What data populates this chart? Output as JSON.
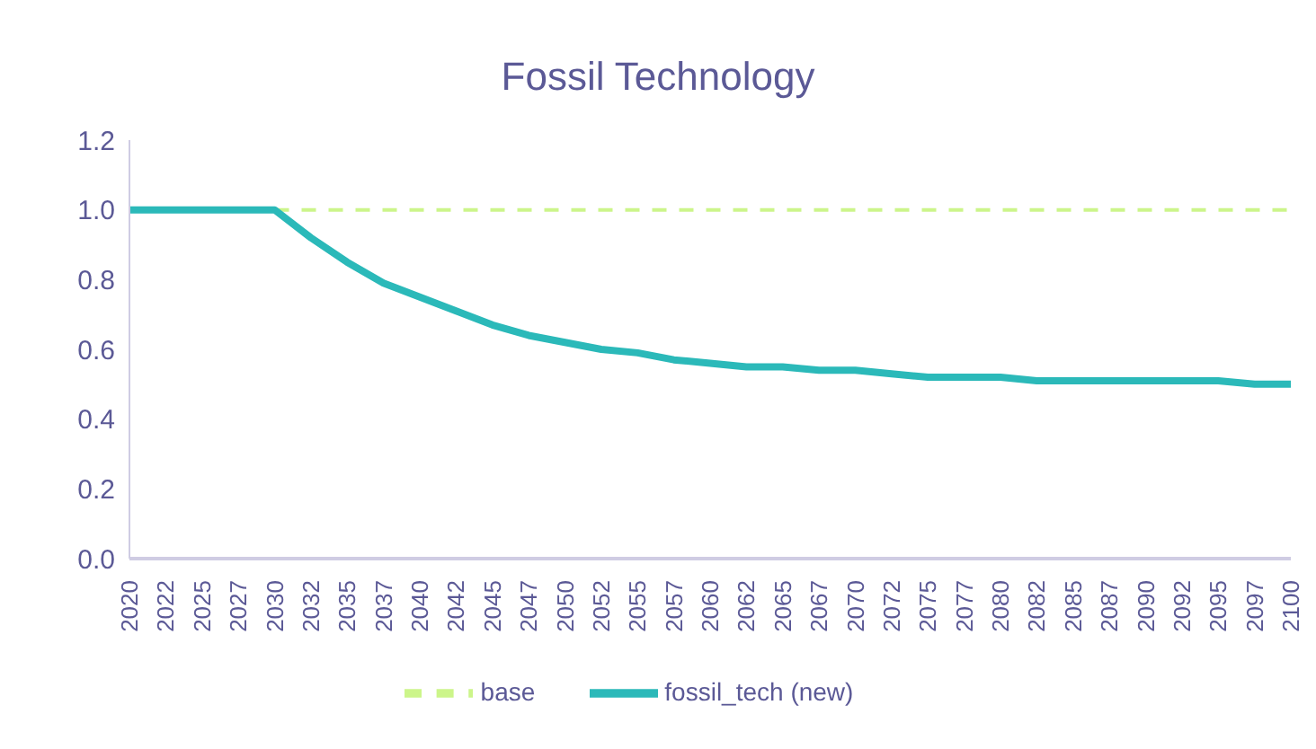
{
  "chart_data": {
    "type": "line",
    "title": "Fossil Technology",
    "categories": [
      "2020",
      "2022",
      "2025",
      "2027",
      "2030",
      "2032",
      "2035",
      "2037",
      "2040",
      "2042",
      "2045",
      "2047",
      "2050",
      "2052",
      "2055",
      "2057",
      "2060",
      "2062",
      "2065",
      "2067",
      "2070",
      "2072",
      "2075",
      "2077",
      "2080",
      "2082",
      "2085",
      "2087",
      "2090",
      "2092",
      "2095",
      "2097",
      "2100"
    ],
    "series": [
      {
        "name": "base",
        "color": "#ccf58a",
        "line_style": "dashed",
        "values": [
          null,
          null,
          null,
          null,
          1,
          1,
          1,
          1,
          1,
          1,
          1,
          1,
          1,
          1,
          1,
          1,
          1,
          1,
          1,
          1,
          1,
          1,
          1,
          1,
          1,
          1,
          1,
          1,
          1,
          1,
          1,
          1,
          1
        ]
      },
      {
        "name": "fossil_tech (new)",
        "color": "#2bb9b9",
        "line_style": "solid",
        "values": [
          1,
          1,
          1,
          1,
          1,
          0.92,
          0.85,
          0.79,
          0.75,
          0.71,
          0.67,
          0.64,
          0.62,
          0.6,
          0.59,
          0.57,
          0.56,
          0.55,
          0.55,
          0.54,
          0.54,
          0.53,
          0.52,
          0.52,
          0.52,
          0.51,
          0.51,
          0.51,
          0.51,
          0.51,
          0.51,
          0.5,
          0.5
        ]
      }
    ],
    "ylim": [
      0,
      1.2
    ],
    "yticks": [
      {
        "value": 0,
        "label": "0.0"
      },
      {
        "value": 0.2,
        "label": "0.2"
      },
      {
        "value": 0.4,
        "label": "0.4"
      },
      {
        "value": 0.6,
        "label": "0.6"
      },
      {
        "value": 0.8,
        "label": "0.8"
      },
      {
        "value": 1,
        "label": "1.0"
      },
      {
        "value": 1.2,
        "label": "1.2"
      }
    ],
    "legend": "bottom",
    "marker": "none"
  }
}
